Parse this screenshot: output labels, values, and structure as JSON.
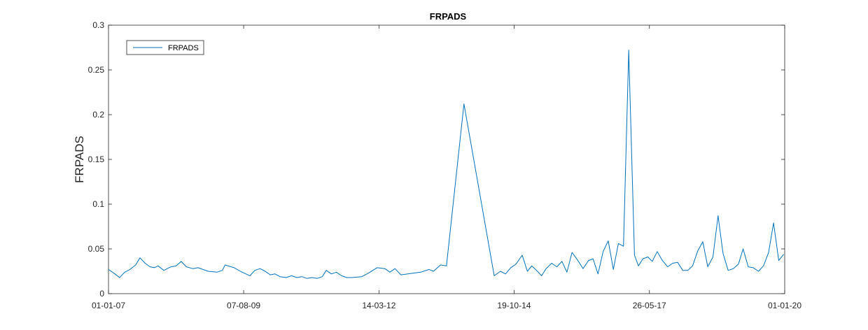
{
  "chart_data": {
    "type": "line",
    "title": "FRPADS",
    "xlabel": "",
    "ylabel": "FRPADS",
    "x_is_date": true,
    "xlim": [
      "2007-01-01",
      "2020-01-01"
    ],
    "ylim": [
      0,
      0.3
    ],
    "x_tick_values": [
      "2007-01-01",
      "2009-08-07",
      "2012-03-14",
      "2014-10-19",
      "2017-05-26",
      "2020-01-01"
    ],
    "x_tick_labels": [
      "01-01-07",
      "07-08-09",
      "14-03-12",
      "19-10-14",
      "26-05-17",
      "01-01-20"
    ],
    "y_ticks": [
      0,
      0.05,
      0.1,
      0.15,
      0.2,
      0.25,
      0.3
    ],
    "y_tick_labels": [
      "0",
      "0.05",
      "0.1",
      "0.15",
      "0.2",
      "0.25",
      "0.3"
    ],
    "grid": false,
    "legend_position": "top-left",
    "series": [
      {
        "name": "FRPADS",
        "color": "#0072bd",
        "x": [
          "2007-01-01",
          "2007-02-15",
          "2007-03-20",
          "2007-04-25",
          "2007-06-01",
          "2007-07-10",
          "2007-08-10",
          "2007-09-15",
          "2007-10-20",
          "2007-11-20",
          "2007-12-15",
          "2008-01-25",
          "2008-03-15",
          "2008-04-20",
          "2008-05-25",
          "2008-07-01",
          "2008-08-15",
          "2008-09-20",
          "2008-12-01",
          "2009-02-01",
          "2009-03-10",
          "2009-03-30",
          "2009-06-01",
          "2009-07-15",
          "2009-08-10",
          "2009-09-20",
          "2009-10-25",
          "2009-11-30",
          "2010-01-05",
          "2010-02-10",
          "2010-03-15",
          "2010-04-20",
          "2010-06-01",
          "2010-07-10",
          "2010-08-15",
          "2010-09-20",
          "2010-10-25",
          "2010-11-30",
          "2011-01-05",
          "2011-02-10",
          "2011-03-10",
          "2011-04-15",
          "2011-05-20",
          "2011-06-25",
          "2011-08-01",
          "2011-09-05",
          "2011-11-15",
          "2012-01-01",
          "2012-03-01",
          "2012-04-25",
          "2012-05-30",
          "2012-07-05",
          "2012-08-15",
          "2013-01-01",
          "2013-03-01",
          "2013-04-01",
          "2013-05-20",
          "2013-07-01",
          "2013-11-01",
          "2014-06-01",
          "2014-07-15",
          "2014-08-20",
          "2014-09-25",
          "2014-11-01",
          "2014-12-15",
          "2015-01-20",
          "2015-02-20",
          "2015-03-25",
          "2015-04-30",
          "2015-06-01",
          "2015-07-10",
          "2015-08-15",
          "2015-09-20",
          "2015-10-25",
          "2015-11-30",
          "2016-01-10",
          "2016-02-15",
          "2016-03-25",
          "2016-04-25",
          "2016-05-30",
          "2016-07-05",
          "2016-08-10",
          "2016-09-15",
          "2016-10-20",
          "2016-11-25",
          "2017-01-01",
          "2017-02-10",
          "2017-03-10",
          "2017-04-10",
          "2017-05-15",
          "2017-06-15",
          "2017-07-20",
          "2017-08-25",
          "2017-10-01",
          "2017-11-05",
          "2017-12-10",
          "2018-01-15",
          "2018-02-20",
          "2018-03-25",
          "2018-05-01",
          "2018-06-05",
          "2018-07-10",
          "2018-08-15",
          "2018-09-20",
          "2018-10-25",
          "2018-11-30",
          "2019-01-05",
          "2019-02-10",
          "2019-03-15",
          "2019-04-20",
          "2019-05-25",
          "2019-07-01",
          "2019-08-05",
          "2019-09-10",
          "2019-10-15",
          "2019-11-20",
          "2019-12-25"
        ],
        "y": [
          0.027,
          0.022,
          0.018,
          0.024,
          0.027,
          0.032,
          0.04,
          0.034,
          0.03,
          0.029,
          0.031,
          0.026,
          0.03,
          0.031,
          0.036,
          0.03,
          0.028,
          0.029,
          0.025,
          0.024,
          0.026,
          0.032,
          0.029,
          0.025,
          0.023,
          0.02,
          0.026,
          0.028,
          0.025,
          0.021,
          0.022,
          0.019,
          0.018,
          0.02,
          0.018,
          0.019,
          0.017,
          0.018,
          0.017,
          0.019,
          0.026,
          0.022,
          0.024,
          0.02,
          0.018,
          0.018,
          0.019,
          0.023,
          0.029,
          0.028,
          0.024,
          0.028,
          0.021,
          0.024,
          0.027,
          0.025,
          0.032,
          0.031,
          0.212,
          0.02,
          0.025,
          0.022,
          0.029,
          0.033,
          0.043,
          0.025,
          0.031,
          0.026,
          0.02,
          0.028,
          0.034,
          0.03,
          0.036,
          0.024,
          0.046,
          0.037,
          0.028,
          0.037,
          0.039,
          0.022,
          0.047,
          0.059,
          0.027,
          0.056,
          0.053,
          0.272,
          0.043,
          0.031,
          0.039,
          0.041,
          0.036,
          0.047,
          0.037,
          0.03,
          0.034,
          0.035,
          0.026,
          0.026,
          0.031,
          0.048,
          0.058,
          0.03,
          0.041,
          0.087,
          0.045,
          0.026,
          0.028,
          0.033,
          0.05,
          0.03,
          0.029,
          0.025,
          0.031,
          0.046,
          0.079,
          0.037,
          0.044
        ]
      }
    ]
  }
}
